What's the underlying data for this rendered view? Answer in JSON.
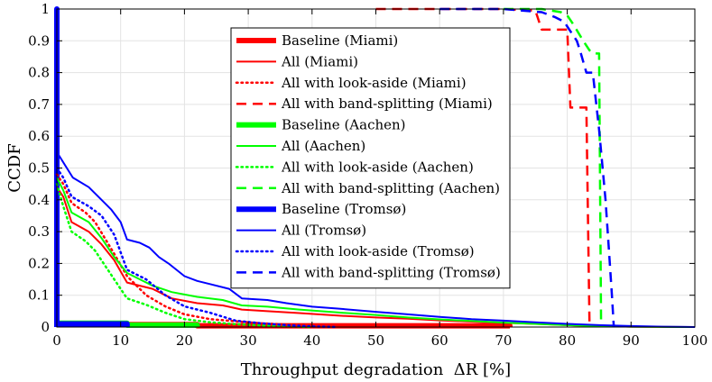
{
  "chart_data": {
    "type": "line",
    "title": "",
    "xlabel": "Throughput degradation  ΔR [%]",
    "ylabel": "CCDF",
    "xlim": [
      0,
      100
    ],
    "ylim": [
      0,
      1
    ],
    "xticks": [
      0,
      10,
      20,
      30,
      40,
      50,
      60,
      70,
      80,
      90,
      100
    ],
    "yticks": [
      0,
      0.1,
      0.2,
      0.3,
      0.4,
      0.5,
      0.6,
      0.7,
      0.8,
      0.9,
      1
    ],
    "grid": true,
    "legend_position": "top-center",
    "series": [
      {
        "name": "Baseline (Miami)",
        "color": "#ff0000",
        "style": "thick",
        "points": [
          [
            0,
            0.008
          ],
          [
            22,
            0.008
          ],
          [
            22,
            0.004
          ],
          [
            71,
            0.004
          ],
          [
            71,
            0
          ]
        ]
      },
      {
        "name": "All (Miami)",
        "color": "#ff0000",
        "style": "solid",
        "points": [
          [
            0,
            0.44
          ],
          [
            1,
            0.41
          ],
          [
            2.3,
            0.33
          ],
          [
            5,
            0.3
          ],
          [
            7,
            0.26
          ],
          [
            9,
            0.21
          ],
          [
            11,
            0.14
          ],
          [
            15,
            0.12
          ],
          [
            18,
            0.09
          ],
          [
            22,
            0.075
          ],
          [
            26,
            0.068
          ],
          [
            29,
            0.055
          ],
          [
            33,
            0.05
          ],
          [
            38,
            0.044
          ],
          [
            44,
            0.036
          ],
          [
            50,
            0.03
          ],
          [
            55,
            0.026
          ],
          [
            60,
            0.021
          ],
          [
            65,
            0.017
          ],
          [
            70,
            0.013
          ],
          [
            75,
            0.01
          ],
          [
            80,
            0.006
          ],
          [
            85,
            0.003
          ],
          [
            90,
            0.001
          ],
          [
            100,
            0
          ]
        ]
      },
      {
        "name": "All with look-aside (Miami)",
        "color": "#ff0000",
        "style": "dotted",
        "points": [
          [
            0,
            0.48
          ],
          [
            1,
            0.45
          ],
          [
            2.3,
            0.39
          ],
          [
            4.5,
            0.36
          ],
          [
            6,
            0.33
          ],
          [
            9,
            0.23
          ],
          [
            11,
            0.16
          ],
          [
            14,
            0.1
          ],
          [
            17,
            0.065
          ],
          [
            20,
            0.04
          ],
          [
            24,
            0.025
          ],
          [
            28,
            0.018
          ],
          [
            32,
            0.012
          ],
          [
            36,
            0.008
          ],
          [
            40,
            0.004
          ],
          [
            45,
            0.001
          ],
          [
            50,
            0
          ]
        ]
      },
      {
        "name": "All with band-splitting (Miami)",
        "color": "#ff0000",
        "style": "dashed",
        "points": [
          [
            50,
            1
          ],
          [
            70,
            1
          ],
          [
            75,
            0.995
          ],
          [
            76,
            0.935
          ],
          [
            80,
            0.935
          ],
          [
            80.5,
            0.69
          ],
          [
            82,
            0.69
          ],
          [
            83,
            0.69
          ],
          [
            83.5,
            0
          ]
        ]
      },
      {
        "name": "Baseline (Aachen)",
        "color": "#00ff00",
        "style": "thick",
        "points": [
          [
            0,
            0.012
          ],
          [
            11,
            0.012
          ],
          [
            11,
            0.006
          ],
          [
            22,
            0.006
          ],
          [
            22,
            0
          ]
        ]
      },
      {
        "name": "All (Aachen)",
        "color": "#00ff00",
        "style": "solid",
        "points": [
          [
            0,
            0.47
          ],
          [
            1,
            0.43
          ],
          [
            2.3,
            0.36
          ],
          [
            5,
            0.33
          ],
          [
            7,
            0.28
          ],
          [
            9,
            0.22
          ],
          [
            11,
            0.17
          ],
          [
            15,
            0.13
          ],
          [
            18,
            0.11
          ],
          [
            22,
            0.095
          ],
          [
            26,
            0.085
          ],
          [
            29,
            0.068
          ],
          [
            33,
            0.064
          ],
          [
            38,
            0.055
          ],
          [
            44,
            0.046
          ],
          [
            50,
            0.038
          ],
          [
            55,
            0.03
          ],
          [
            60,
            0.024
          ],
          [
            65,
            0.019
          ],
          [
            70,
            0.014
          ],
          [
            75,
            0.01
          ],
          [
            80,
            0.006
          ],
          [
            85,
            0.003
          ],
          [
            90,
            0.001
          ],
          [
            100,
            0
          ]
        ]
      },
      {
        "name": "All with look-aside (Aachen)",
        "color": "#00ff00",
        "style": "dotted",
        "points": [
          [
            0,
            0.45
          ],
          [
            1,
            0.38
          ],
          [
            2.3,
            0.3
          ],
          [
            4.5,
            0.27
          ],
          [
            6,
            0.24
          ],
          [
            9,
            0.15
          ],
          [
            11,
            0.09
          ],
          [
            14,
            0.07
          ],
          [
            17,
            0.045
          ],
          [
            20,
            0.025
          ],
          [
            24,
            0.015
          ],
          [
            28,
            0.009
          ],
          [
            32,
            0.005
          ],
          [
            36,
            0.002
          ],
          [
            40,
            0
          ]
        ]
      },
      {
        "name": "All with band-splitting (Aachen)",
        "color": "#00ff00",
        "style": "dashed",
        "points": [
          [
            70,
            1
          ],
          [
            76,
            1
          ],
          [
            79,
            0.99
          ],
          [
            80,
            0.98
          ],
          [
            81,
            0.95
          ],
          [
            82.5,
            0.9
          ],
          [
            83.5,
            0.87
          ],
          [
            84,
            0.86
          ],
          [
            85,
            0.86
          ],
          [
            85.3,
            0
          ]
        ]
      },
      {
        "name": "Baseline (Tromsø)",
        "color": "#0000ff",
        "style": "thick",
        "points": [
          [
            0,
            0
          ],
          [
            0,
            1
          ],
          [
            0,
            0.01
          ],
          [
            11,
            0.01
          ],
          [
            11,
            0
          ]
        ]
      },
      {
        "name": "All (Tromsø)",
        "color": "#0000ff",
        "style": "solid",
        "points": [
          [
            0,
            0.55
          ],
          [
            2.5,
            0.47
          ],
          [
            5,
            0.44
          ],
          [
            7,
            0.4
          ],
          [
            8.5,
            0.37
          ],
          [
            10,
            0.33
          ],
          [
            11,
            0.275
          ],
          [
            13,
            0.265
          ],
          [
            14.5,
            0.25
          ],
          [
            16,
            0.22
          ],
          [
            17.5,
            0.2
          ],
          [
            20,
            0.16
          ],
          [
            22,
            0.145
          ],
          [
            24,
            0.135
          ],
          [
            27,
            0.12
          ],
          [
            29,
            0.09
          ],
          [
            33,
            0.085
          ],
          [
            36,
            0.075
          ],
          [
            40,
            0.064
          ],
          [
            44,
            0.058
          ],
          [
            50,
            0.048
          ],
          [
            55,
            0.04
          ],
          [
            60,
            0.032
          ],
          [
            65,
            0.025
          ],
          [
            70,
            0.02
          ],
          [
            75,
            0.015
          ],
          [
            80,
            0.01
          ],
          [
            85,
            0.006
          ],
          [
            90,
            0.003
          ],
          [
            95,
            0.001
          ],
          [
            100,
            0
          ]
        ]
      },
      {
        "name": "All with look-aside (Tromsø)",
        "color": "#0000ff",
        "style": "dotted",
        "points": [
          [
            0,
            0.5
          ],
          [
            1,
            0.47
          ],
          [
            2.3,
            0.41
          ],
          [
            5,
            0.38
          ],
          [
            7,
            0.35
          ],
          [
            9,
            0.29
          ],
          [
            11,
            0.18
          ],
          [
            14,
            0.15
          ],
          [
            17,
            0.1
          ],
          [
            20,
            0.065
          ],
          [
            24,
            0.045
          ],
          [
            28,
            0.02
          ],
          [
            32,
            0.012
          ],
          [
            36,
            0.006
          ],
          [
            40,
            0.002
          ],
          [
            44,
            0
          ]
        ]
      },
      {
        "name": "All with band-splitting (Tromsø)",
        "color": "#0000ff",
        "style": "dashed",
        "points": [
          [
            60,
            1
          ],
          [
            70,
            1
          ],
          [
            76,
            0.99
          ],
          [
            78,
            0.975
          ],
          [
            79.5,
            0.96
          ],
          [
            80.5,
            0.93
          ],
          [
            81.5,
            0.9
          ],
          [
            82,
            0.87
          ],
          [
            83,
            0.8
          ],
          [
            84,
            0.8
          ],
          [
            85,
            0.62
          ],
          [
            86,
            0.4
          ],
          [
            86.5,
            0.25
          ],
          [
            87,
            0.1
          ],
          [
            87.3,
            0
          ]
        ]
      }
    ]
  }
}
